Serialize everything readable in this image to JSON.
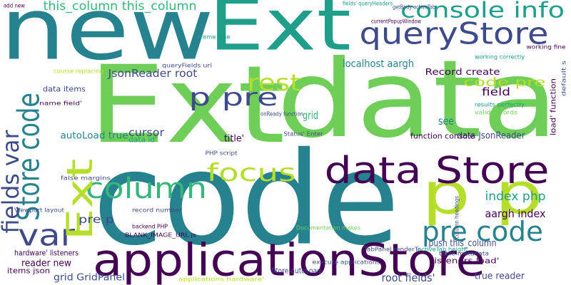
{
  "words": [
    "code",
    "Ext",
    "data",
    "new",
    "Ext",
    "applicationStore",
    "queryStore",
    "console info",
    "p p",
    "data Store",
    "column",
    "focus",
    "pre code",
    "p pre",
    "rest",
    "var",
    "Store code",
    "fields var",
    "Ext",
    "this_column this_column",
    "JsonReader root",
    "code pre",
    "Record create",
    "localhost aargh",
    "field",
    "cursor",
    "grid",
    "see",
    "data items",
    "autoLoad true",
    "data JsonReader",
    "function console",
    "index php",
    "aargh index",
    "push this_column",
    "pre p",
    "listeners load'",
    "reader new",
    "grid GridPanel",
    "root fields'",
    "true reader",
    "Store autoLoad",
    "items json",
    "hardware' listeners",
    "title'",
    "data id'",
    "load' function",
    "add new",
    "fields' queryHeaders",
    "getBody activeTab",
    "currentPopupWindow",
    "working correctly",
    "results perfectly",
    "valid records",
    "onReady function",
    "PHP script",
    "Status' Enter",
    "execute applications",
    "applications hardware'",
    "Documentation makes",
    "TabPanel renderTo",
    "table metadata",
    "record number",
    "backend PHP",
    "BLANK_IMAGE_URL js",
    "Viewport layout",
    "column headings",
    "activeTab height",
    "false margins",
    "name field'",
    "course replacing",
    "frame true",
    "queryFields url",
    "default s",
    "working fine"
  ]
}
